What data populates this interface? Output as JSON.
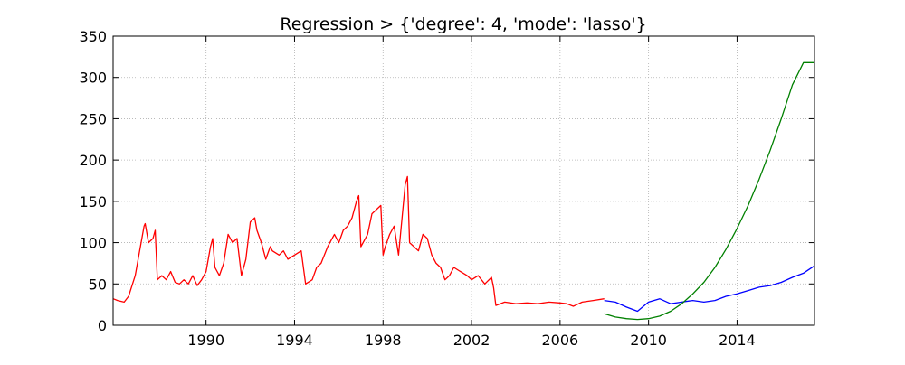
{
  "chart_data": {
    "type": "line",
    "title": "Regression > {'degree': 4, 'mode': 'lasso'}",
    "xlabel": "",
    "ylabel": "",
    "xlim": [
      1985.8,
      2017.5
    ],
    "ylim": [
      0,
      350
    ],
    "grid": true,
    "x_ticks": [
      {
        "value": 1990,
        "label": "1990"
      },
      {
        "value": 1994,
        "label": "1994"
      },
      {
        "value": 1998,
        "label": "1998"
      },
      {
        "value": 2002,
        "label": "2002"
      },
      {
        "value": 2006,
        "label": "2006"
      },
      {
        "value": 2010,
        "label": "2010"
      },
      {
        "value": 2014,
        "label": "2014"
      }
    ],
    "y_ticks": [
      {
        "value": 0,
        "label": "0"
      },
      {
        "value": 50,
        "label": "50"
      },
      {
        "value": 100,
        "label": "100"
      },
      {
        "value": 150,
        "label": "150"
      },
      {
        "value": 200,
        "label": "200"
      },
      {
        "value": 250,
        "label": "250"
      },
      {
        "value": 300,
        "label": "300"
      },
      {
        "value": 350,
        "label": "350"
      }
    ],
    "series": [
      {
        "color": "#ff0000",
        "x": [
          1985.8,
          1986.0,
          1986.3,
          1986.5,
          1986.8,
          1987.0,
          1987.2,
          1987.25,
          1987.4,
          1987.6,
          1987.7,
          1987.8,
          1988.0,
          1988.2,
          1988.4,
          1988.6,
          1988.8,
          1989.0,
          1989.2,
          1989.4,
          1989.6,
          1989.8,
          1990.0,
          1990.2,
          1990.3,
          1990.4,
          1990.6,
          1990.8,
          1991.0,
          1991.2,
          1991.4,
          1991.6,
          1991.8,
          1992.0,
          1992.2,
          1992.3,
          1992.5,
          1992.7,
          1992.9,
          1993.0,
          1993.3,
          1993.5,
          1993.7,
          1994.0,
          1994.3,
          1994.5,
          1994.8,
          1995.0,
          1995.2,
          1995.5,
          1995.8,
          1996.0,
          1996.2,
          1996.4,
          1996.6,
          1996.8,
          1996.9,
          1997.0,
          1997.3,
          1997.5,
          1997.7,
          1997.9,
          1998.0,
          1998.1,
          1998.3,
          1998.5,
          1998.7,
          1999.0,
          1999.1,
          1999.2,
          1999.4,
          1999.6,
          1999.8,
          2000.0,
          2000.2,
          2000.4,
          2000.6,
          2000.8,
          2001.0,
          2001.2,
          2001.5,
          2001.8,
          2002.0,
          2002.3,
          2002.6,
          2002.9,
          2003.0,
          2003.1,
          2003.5,
          2004.0,
          2004.5,
          2005.0,
          2005.5,
          2006.0,
          2006.3,
          2006.6,
          2007.0,
          2007.5,
          2008.0
        ],
        "y": [
          32,
          30,
          28,
          35,
          60,
          90,
          120,
          123,
          100,
          105,
          115,
          55,
          60,
          55,
          65,
          52,
          50,
          55,
          50,
          60,
          48,
          55,
          65,
          95,
          105,
          70,
          60,
          75,
          110,
          100,
          105,
          60,
          80,
          125,
          130,
          115,
          100,
          80,
          95,
          90,
          85,
          90,
          80,
          85,
          90,
          50,
          55,
          70,
          75,
          95,
          110,
          100,
          115,
          120,
          130,
          150,
          157,
          95,
          110,
          135,
          140,
          145,
          85,
          95,
          110,
          120,
          85,
          170,
          180,
          100,
          95,
          90,
          110,
          105,
          85,
          75,
          70,
          55,
          60,
          70,
          65,
          60,
          55,
          60,
          50,
          58,
          45,
          24,
          28,
          26,
          27,
          26,
          28,
          27,
          26,
          23,
          28,
          30,
          32
        ]
      },
      {
        "color": "#0000ff",
        "x": [
          2008.0,
          2008.5,
          2009.0,
          2009.5,
          2010.0,
          2010.5,
          2011.0,
          2011.5,
          2012.0,
          2012.5,
          2013.0,
          2013.5,
          2014.0,
          2014.5,
          2015.0,
          2015.5,
          2016.0,
          2016.5,
          2017.0,
          2017.5
        ],
        "y": [
          30,
          28,
          22,
          17,
          28,
          32,
          26,
          28,
          30,
          28,
          30,
          35,
          38,
          42,
          46,
          48,
          52,
          58,
          63,
          72
        ]
      },
      {
        "color": "#008000",
        "x": [
          2008.0,
          2008.5,
          2009.0,
          2009.5,
          2010.0,
          2010.5,
          2011.0,
          2011.5,
          2012.0,
          2012.5,
          2013.0,
          2013.5,
          2014.0,
          2014.5,
          2015.0,
          2015.5,
          2016.0,
          2016.5,
          2017.0,
          2017.5
        ],
        "y": [
          14,
          10,
          8,
          7,
          8,
          11,
          17,
          26,
          38,
          52,
          70,
          92,
          117,
          145,
          177,
          212,
          250,
          291,
          318,
          318
        ]
      }
    ]
  }
}
